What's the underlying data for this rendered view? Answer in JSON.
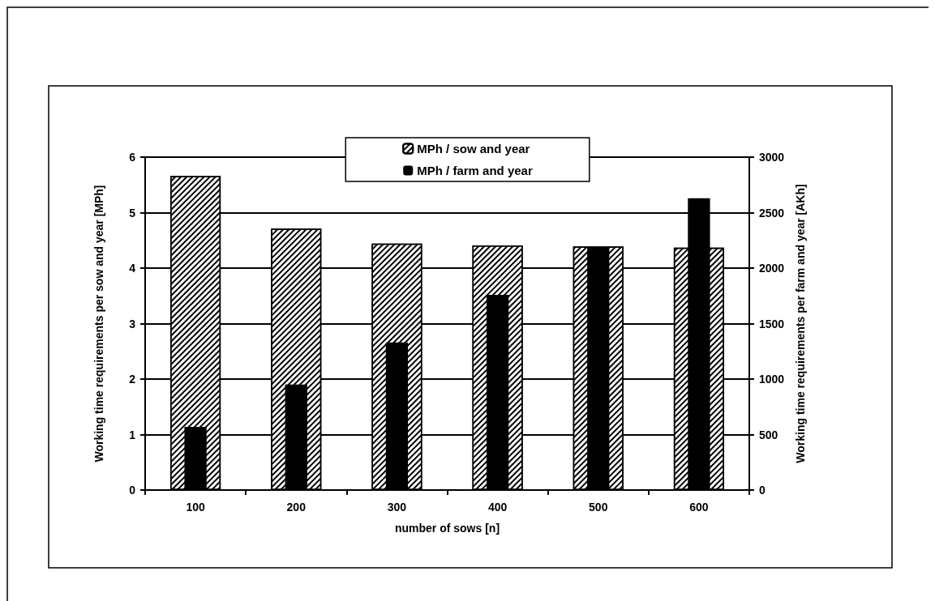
{
  "chart_data": {
    "type": "bar",
    "xlabel": "number of sows [n]",
    "ylabel": "Working time requirements per sow and year [MPh]",
    "y2label": "Working time requirements per farm and year [AKh]",
    "categories": [
      "100",
      "200",
      "300",
      "400",
      "500",
      "600"
    ],
    "series": [
      {
        "name": "MPh / sow and year",
        "color": "#ffffff",
        "values": [
          5.66,
          4.71,
          4.44,
          4.41,
          4.39,
          4.37
        ]
      },
      {
        "name": "MPh / farm and year",
        "color": "#000000",
        "axis": "y2",
        "values": [
          570,
          950,
          1330,
          1760,
          2190,
          2630
        ]
      }
    ],
    "ylim": [
      0,
      6
    ],
    "yticks": [
      0,
      1,
      2,
      3,
      4,
      5,
      6
    ],
    "y2lim": [
      0,
      3000
    ],
    "y2ticks": [
      0,
      500,
      1000,
      1500,
      2000,
      2500,
      3000
    ],
    "grid": "y",
    "legend": "top"
  }
}
